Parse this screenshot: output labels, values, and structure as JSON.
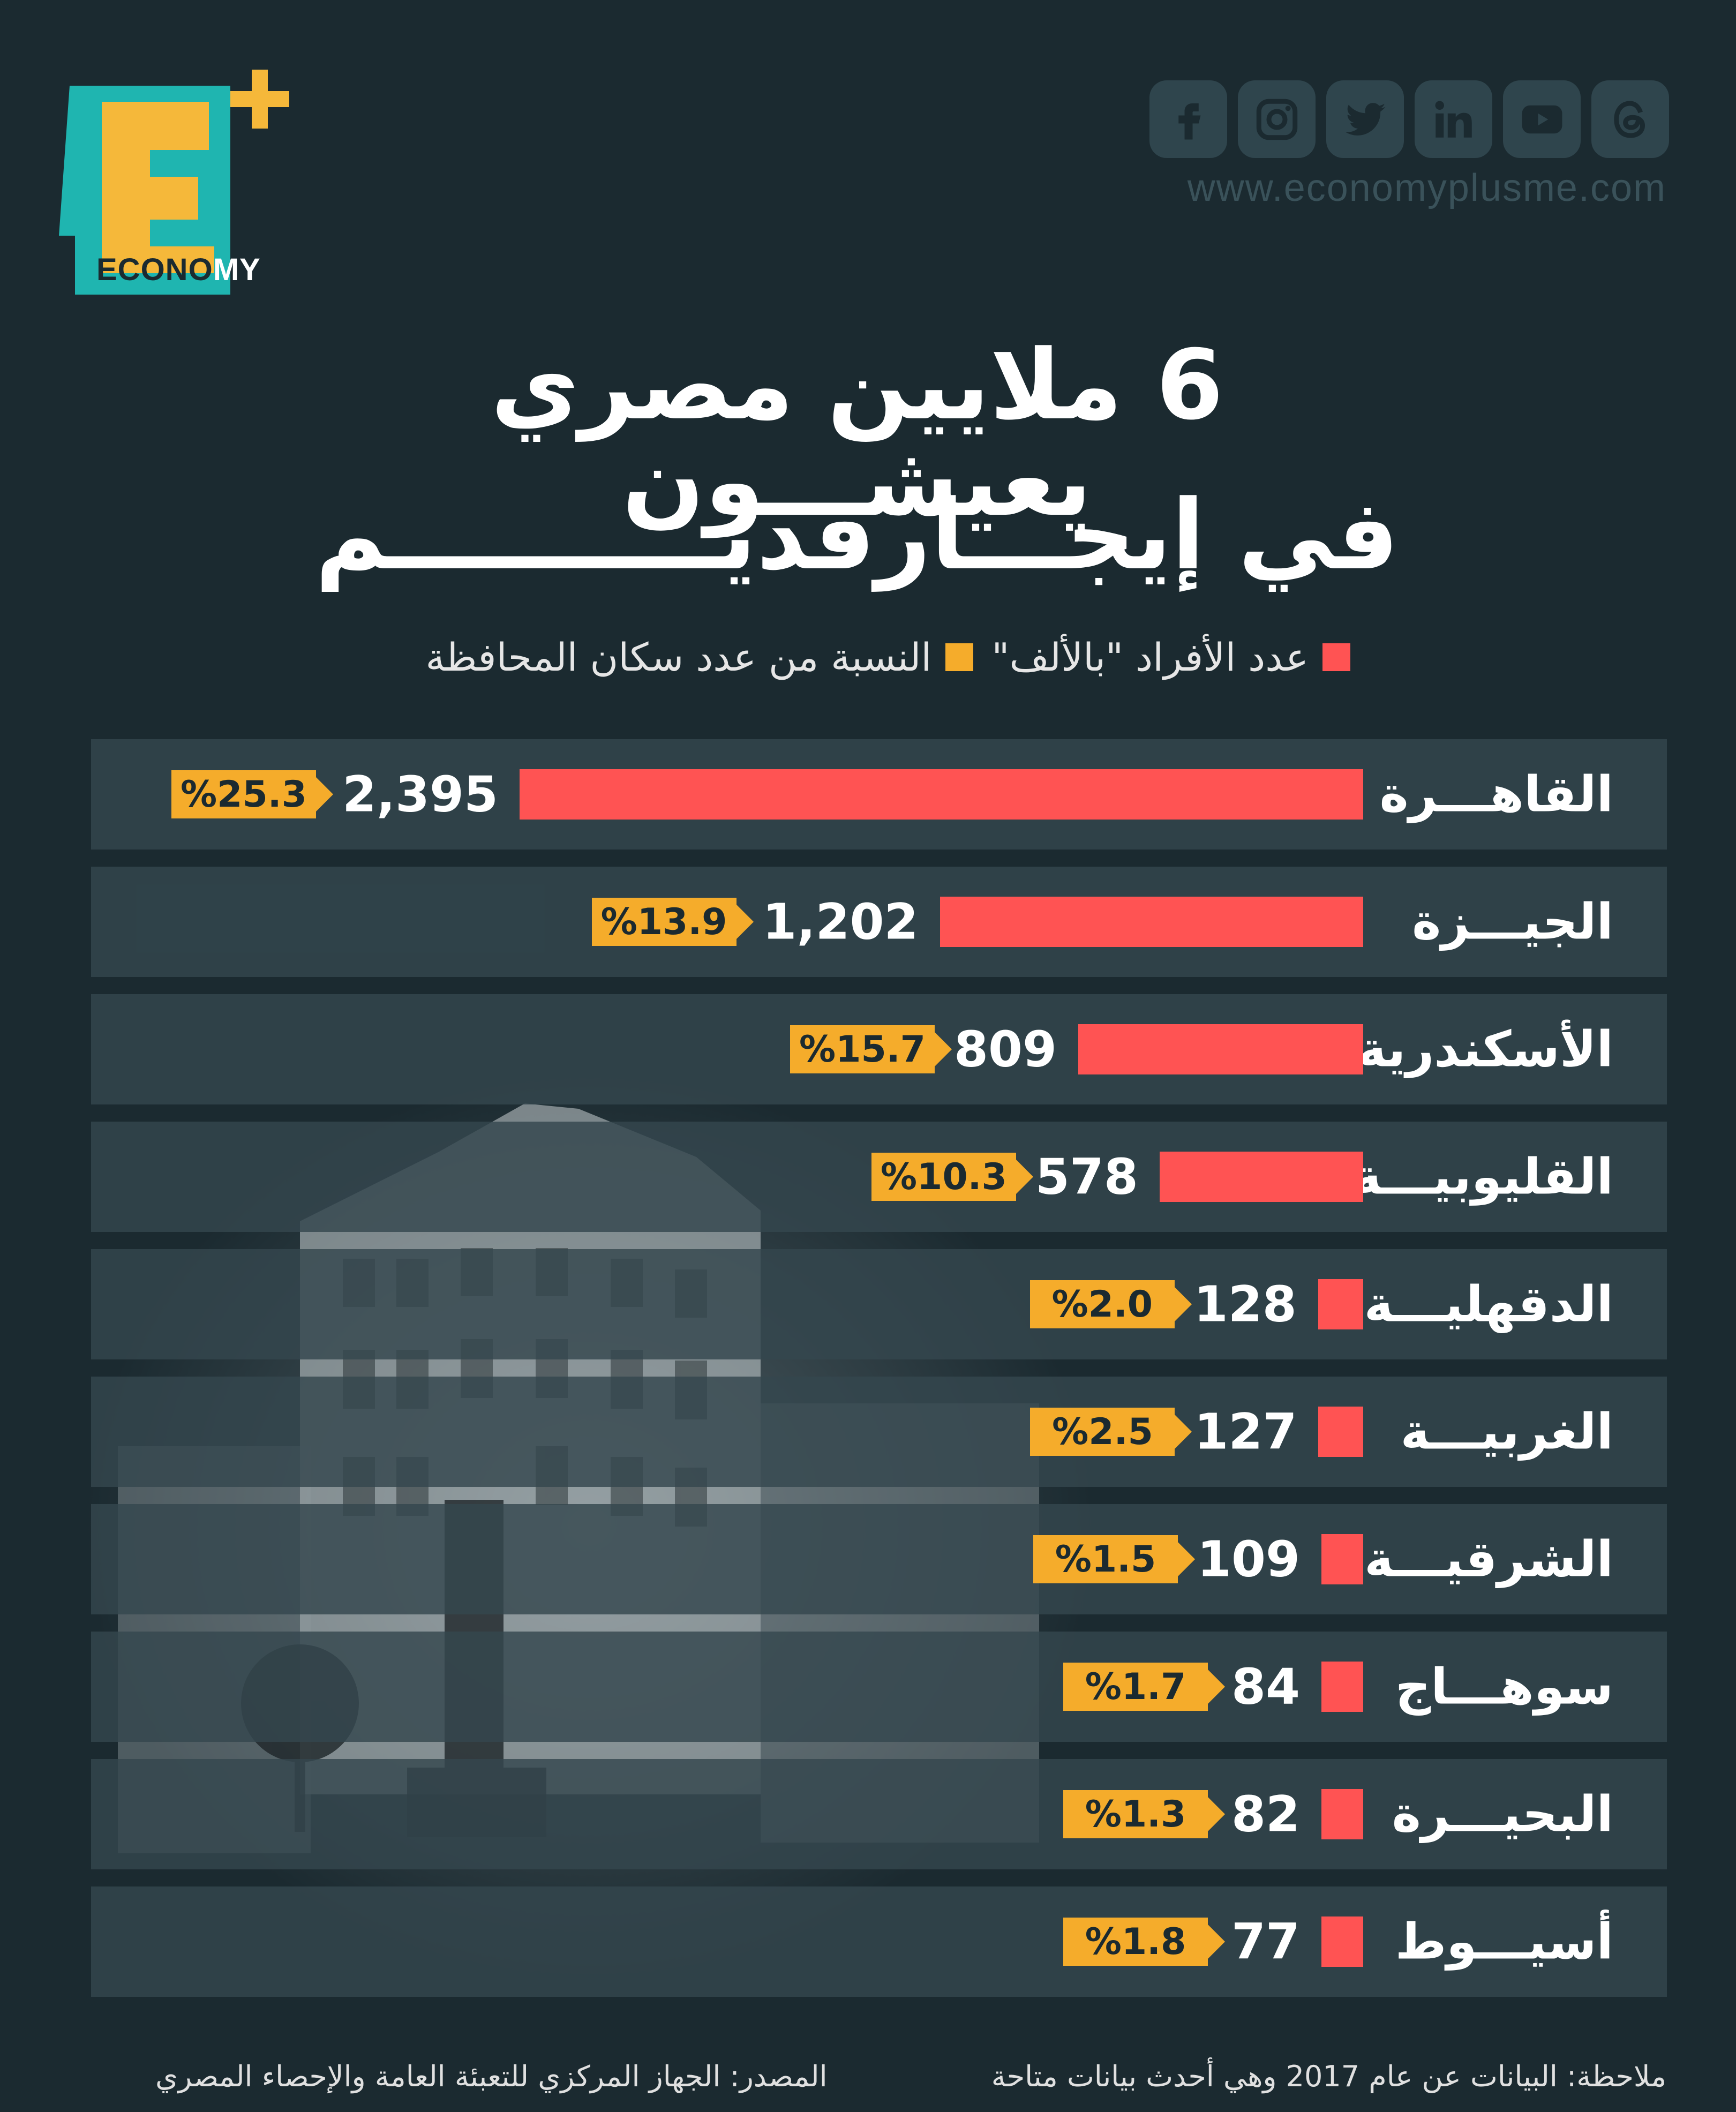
{
  "brand": {
    "logo_letter": "E",
    "logo_word_a": "ECONO",
    "logo_word_b": "MY",
    "website": "www.economyplusme.com"
  },
  "socials": [
    "facebook-icon",
    "instagram-icon",
    "twitter-icon",
    "linkedin-icon",
    "youtube-icon",
    "threads-icon"
  ],
  "title": {
    "line1": "6 ملايين مصري يعيشـــون",
    "line2": "في إيجـــارقديــــــــــم"
  },
  "legend": {
    "count_label": "عدد الأفراد \"بالألف\"",
    "share_label": "النسبة من عدد سكان المحافظة"
  },
  "colors": {
    "background": "#1b2a30",
    "count": "#ff5353",
    "share": "#f5ac2b",
    "row": "#34474e"
  },
  "chart_data": {
    "type": "bar",
    "orientation": "horizontal",
    "categories": [
      "القاهـــرة",
      "الجيـــزة",
      "الأسكندرية",
      "القليوبيـــة",
      "الدقهليـــة",
      "الغربيـــة",
      "الشرقيـــة",
      "سوهـــاج",
      "البحيـــرة",
      "أسيـــوط"
    ],
    "series": [
      {
        "name": "عدد الأفراد \"بالألف\"",
        "values": [
          2395,
          1202,
          809,
          578,
          128,
          127,
          109,
          84,
          82,
          77
        ],
        "labels": [
          "2,395",
          "1,202",
          "809",
          "578",
          "128",
          "127",
          "109",
          "84",
          "82",
          "77"
        ]
      },
      {
        "name": "النسبة من عدد سكان المحافظة",
        "values": [
          25.3,
          13.9,
          15.7,
          10.3,
          2.0,
          2.5,
          1.5,
          1.7,
          1.3,
          1.8
        ],
        "labels": [
          "%25.3",
          "%13.9",
          "%15.7",
          "%10.3",
          "%2.0",
          "%2.5",
          "%1.5",
          "%1.7",
          "%1.3",
          "%1.8"
        ]
      }
    ]
  },
  "footer": {
    "note": "ملاحظة: البيانات عن عام 2017 وهي أحدث بيانات متاحة",
    "source": "المصدر: الجهاز المركزي للتعبئة العامة والإحصاء المصري"
  }
}
